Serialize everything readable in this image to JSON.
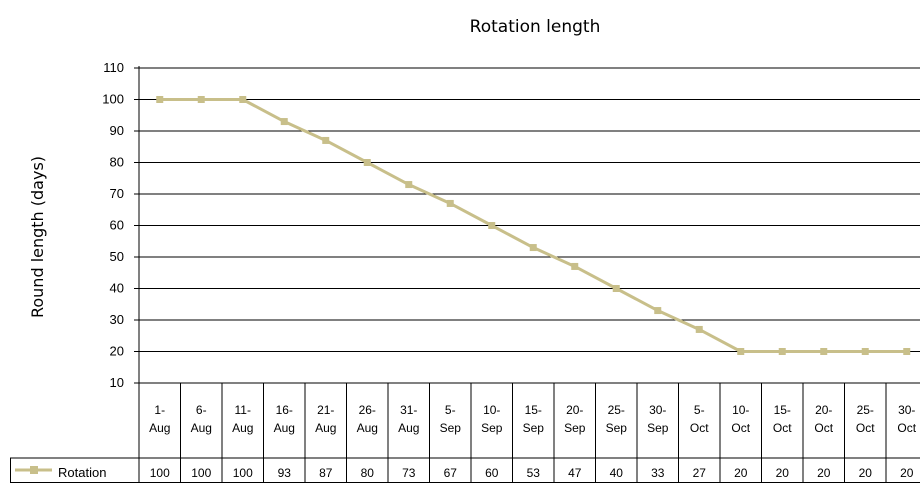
{
  "chart_data": {
    "type": "line",
    "title": "Rotation length",
    "ylabel": "Round length (days)",
    "xlabel": "",
    "ylim": [
      10,
      110
    ],
    "yticks": [
      10,
      20,
      30,
      40,
      50,
      60,
      70,
      80,
      90,
      100,
      110
    ],
    "grid": true,
    "legend": "left-in-data-table",
    "categories": [
      [
        "1-",
        "Aug"
      ],
      [
        "6-",
        "Aug"
      ],
      [
        "11-",
        "Aug"
      ],
      [
        "16-",
        "Aug"
      ],
      [
        "21-",
        "Aug"
      ],
      [
        "26-",
        "Aug"
      ],
      [
        "31-",
        "Aug"
      ],
      [
        "5-",
        "Sep"
      ],
      [
        "10-",
        "Sep"
      ],
      [
        "15-",
        "Sep"
      ],
      [
        "20-",
        "Sep"
      ],
      [
        "25-",
        "Sep"
      ],
      [
        "30-",
        "Sep"
      ],
      [
        "5-",
        "Oct"
      ],
      [
        "10-",
        "Oct"
      ],
      [
        "15-",
        "Oct"
      ],
      [
        "20-",
        "Oct"
      ],
      [
        "25-",
        "Oct"
      ],
      [
        "30-",
        "Oct"
      ]
    ],
    "series": [
      {
        "name": "Rotation",
        "color": "#c8bf8a",
        "values": [
          100,
          100,
          100,
          93,
          87,
          80,
          73,
          67,
          60,
          53,
          47,
          40,
          33,
          27,
          20,
          20,
          20,
          20,
          20
        ]
      }
    ]
  }
}
